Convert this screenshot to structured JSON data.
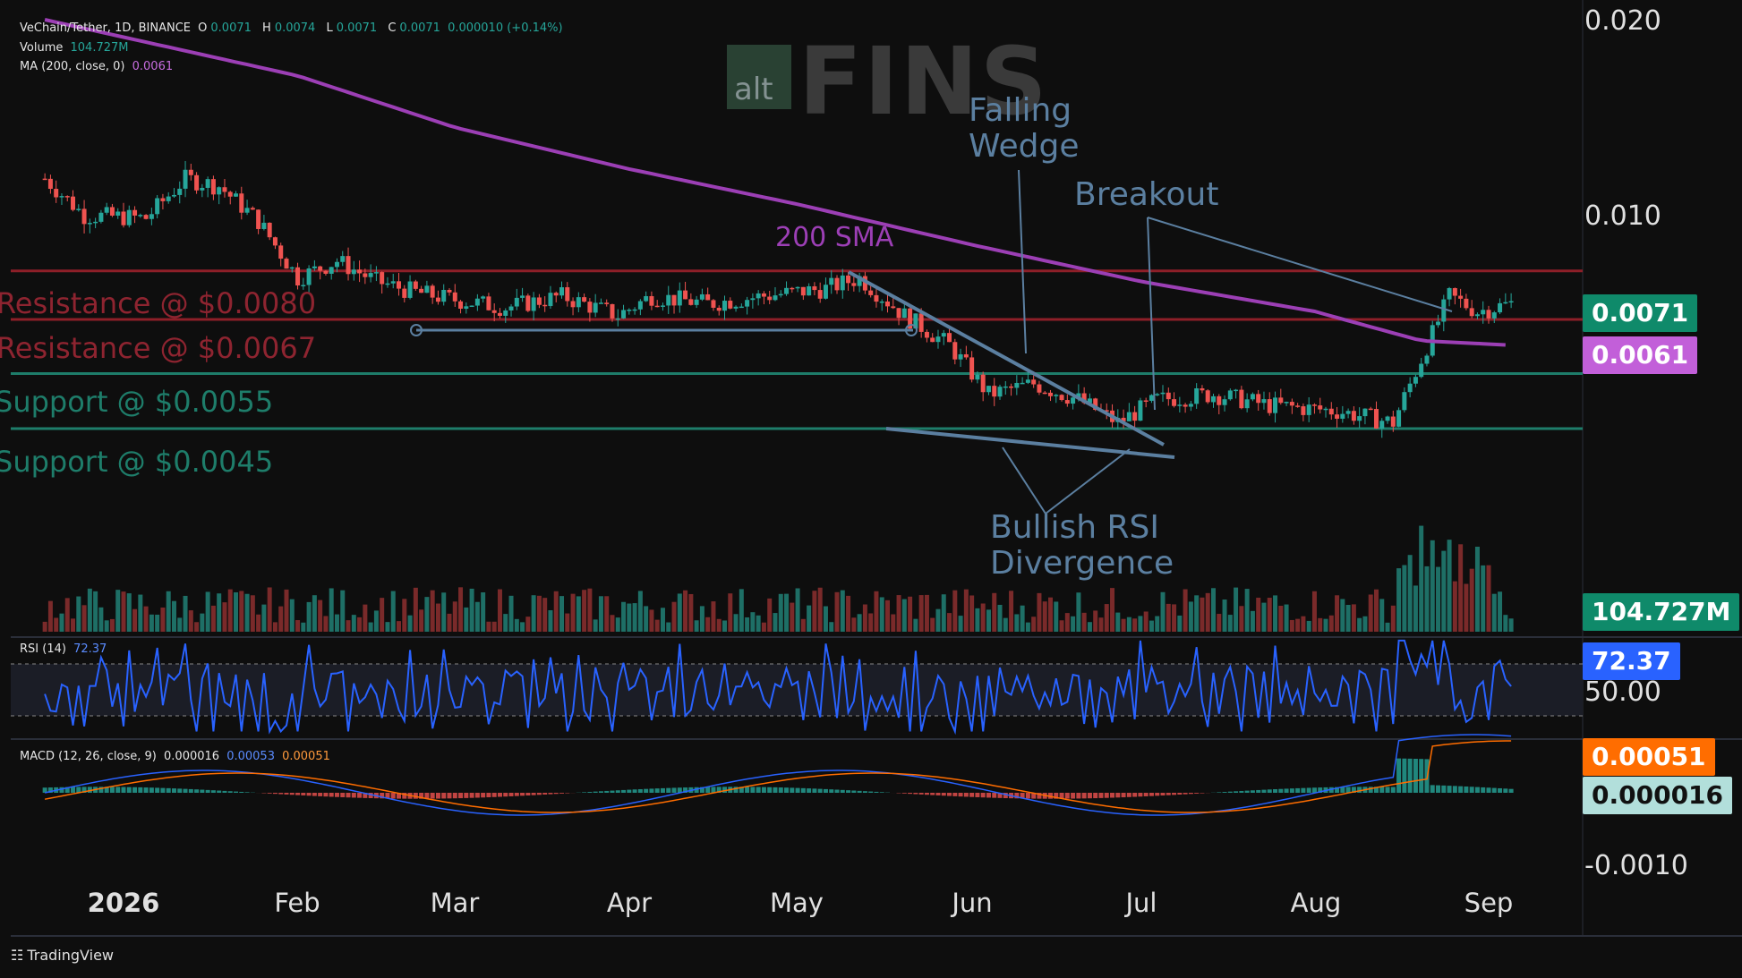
{
  "legend": {
    "symbol": "VeChain/Tether, 1D, BINANCE",
    "o_label": "O",
    "o_val": "0.0071",
    "h_label": "H",
    "h_val": "0.0074",
    "l_label": "L",
    "l_val": "0.0071",
    "c_label": "C",
    "c_val": "0.0071",
    "change": "0.000010 (+0.14%)",
    "volume_label": "Volume",
    "volume_val": "104.727M",
    "ma_label": "MA (200, close, 0)",
    "ma_val": "0.0061"
  },
  "watermark": {
    "small": "alt",
    "big": "FINS"
  },
  "annotations": {
    "falling_wedge": [
      "Falling",
      "Wedge"
    ],
    "breakout": "Breakout",
    "sma": "200 SMA",
    "divergence": [
      "Bullish RSI",
      "Divergence"
    ]
  },
  "levels": [
    {
      "label": "Resistance @ $0.0080",
      "value": 0.008,
      "color": "#8e1f28"
    },
    {
      "label": "Resistance @ $0.0067",
      "value": 0.0067,
      "color": "#8e1f28"
    },
    {
      "label": "Support @ $0.0055",
      "value": 0.0055,
      "color": "#1e7d6a"
    },
    {
      "label": "Support @ $0.0045",
      "value": 0.0045,
      "color": "#1e7d6a"
    }
  ],
  "price_axis": {
    "top": "0.020",
    "mid": "0.010"
  },
  "tags": {
    "price": "0.0071",
    "ma": "0.0061",
    "volume": "104.727M",
    "rsi": "72.37",
    "rsi_level": "50.00",
    "macd_signal": "0.00051",
    "macd_hist": "0.000016",
    "macd_axis": "-0.0010"
  },
  "rsi_legend": {
    "label": "RSI (14)",
    "val": "72.37"
  },
  "macd_legend": {
    "label": "MACD (12, 26, close, 9)",
    "hist": "0.000016",
    "macd": "0.00053",
    "signal": "0.00051"
  },
  "x_axis": [
    "2026",
    "Feb",
    "Mar",
    "Apr",
    "May",
    "Jun",
    "Jul",
    "Aug",
    "Sep"
  ],
  "footer": "TradingView",
  "colors": {
    "up": "#26a69a",
    "down": "#ef5350",
    "ma": "#9c3fb5",
    "rsi": "#2962ff",
    "signal": "#ff6d00",
    "annot": "#5b7fa0"
  },
  "chart_data": {
    "type": "candlestick",
    "title": "VeChain/Tether, 1D, BINANCE",
    "y_scale": "log",
    "ylim": [
      0.0035,
      0.02
    ],
    "series": [
      {
        "name": "VeChain/Tether",
        "anchors": [
          [
            "2025-12-18",
            0.0112
          ],
          [
            "2025-12-25",
            0.0098
          ],
          [
            "2026-01-05",
            0.0097
          ],
          [
            "2026-01-12",
            0.0112
          ],
          [
            "2026-01-18",
            0.0109
          ],
          [
            "2026-01-25",
            0.0096
          ],
          [
            "2026-02-01",
            0.0078
          ],
          [
            "2026-02-08",
            0.0083
          ],
          [
            "2026-02-15",
            0.0077
          ],
          [
            "2026-02-22",
            0.0074
          ],
          [
            "2026-03-01",
            0.0072
          ],
          [
            "2026-03-10",
            0.007
          ],
          [
            "2026-03-20",
            0.0073
          ],
          [
            "2026-03-30",
            0.0068
          ],
          [
            "2026-04-05",
            0.0073
          ],
          [
            "2026-04-15",
            0.0071
          ],
          [
            "2026-04-25",
            0.0073
          ],
          [
            "2026-05-06",
            0.0075
          ],
          [
            "2026-05-12",
            0.0078
          ],
          [
            "2026-05-20",
            0.0068
          ],
          [
            "2026-05-28",
            0.0061
          ],
          [
            "2026-06-04",
            0.0051
          ],
          [
            "2026-06-12",
            0.0053
          ],
          [
            "2026-06-20",
            0.005
          ],
          [
            "2026-06-27",
            0.0046
          ],
          [
            "2026-07-04",
            0.005
          ],
          [
            "2026-07-14",
            0.0051
          ],
          [
            "2026-07-24",
            0.0049
          ],
          [
            "2026-08-05",
            0.0048
          ],
          [
            "2026-08-15",
            0.0046
          ],
          [
            "2026-08-20",
            0.0058
          ],
          [
            "2026-08-25",
            0.0073
          ],
          [
            "2026-08-30",
            0.0069
          ],
          [
            "2026-09-05",
            0.0071
          ]
        ]
      },
      {
        "name": "MA (200, close, 0)",
        "anchors": [
          [
            "2025-12-18",
            0.02
          ],
          [
            "2026-02-01",
            0.0163
          ],
          [
            "2026-03-01",
            0.0135
          ],
          [
            "2026-04-01",
            0.0116
          ],
          [
            "2026-05-01",
            0.0102
          ],
          [
            "2026-06-01",
            0.0088
          ],
          [
            "2026-07-01",
            0.0077
          ],
          [
            "2026-08-01",
            0.0069
          ],
          [
            "2026-08-20",
            0.0062
          ],
          [
            "2026-09-05",
            0.0061
          ]
        ]
      }
    ],
    "annotations": [
      "Falling Wedge",
      "Breakout",
      "200 SMA",
      "Bullish RSI Divergence"
    ]
  }
}
